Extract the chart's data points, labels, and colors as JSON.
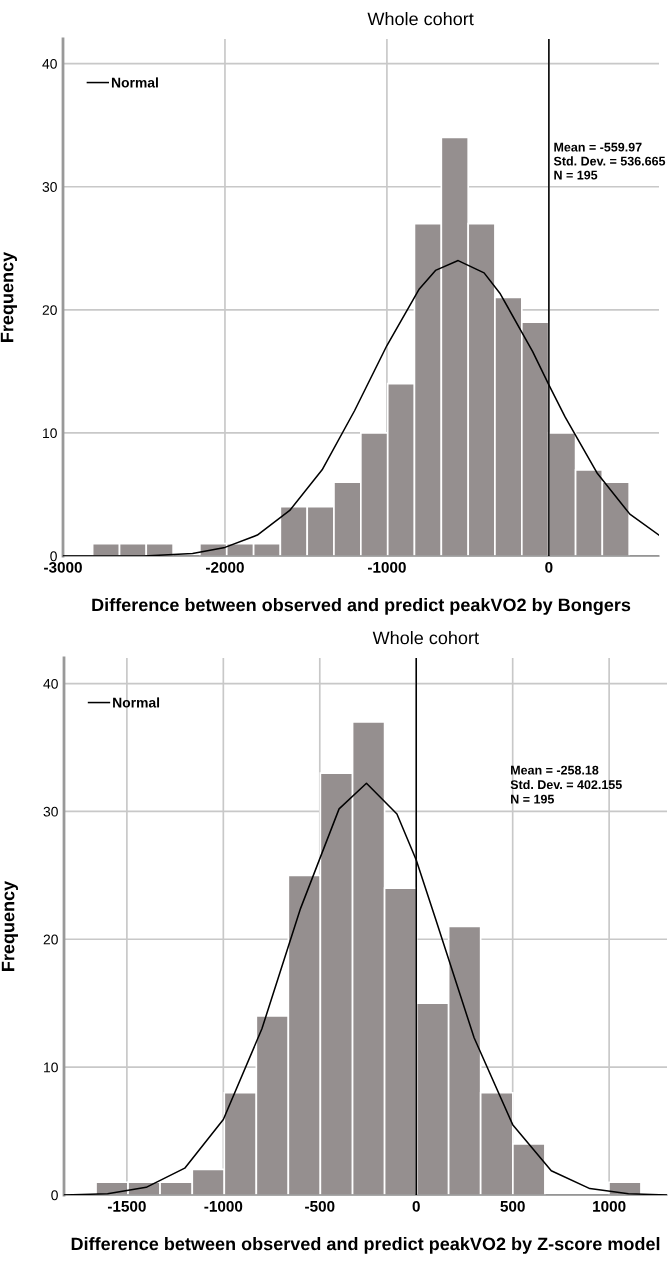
{
  "chart_data": [
    {
      "type": "histogram",
      "title": "Whole cohort",
      "xlabel": "Difference between observed and predict peakVO2 by Bongers",
      "ylabel": "Frequency",
      "bins": [
        -2817,
        -2651,
        -2486,
        -2320,
        -2155,
        -1989,
        -1823,
        -1658,
        -1492,
        -1327,
        -1161,
        -995,
        -830,
        -664,
        -498,
        -333,
        -167,
        -1,
        165,
        330,
        496
      ],
      "values": [
        1,
        1,
        1,
        0,
        1,
        1,
        1,
        4,
        4,
        6,
        10,
        14,
        27,
        34,
        27,
        21,
        19,
        10,
        7,
        6
      ],
      "color": "#958f8f",
      "series": [
        {
          "name": "Normal",
          "type": "line",
          "color": "#000000",
          "x": [
            -3000,
            -2500,
            -2200,
            -2000,
            -1800,
            -1600,
            -1400,
            -1200,
            -1000,
            -800,
            -700,
            -560,
            -400,
            -300,
            -100,
            0,
            100,
            300,
            500,
            680
          ],
          "values": [
            0,
            0,
            0.2,
            0.7,
            1.7,
            3.7,
            7,
            11.8,
            17.1,
            21.7,
            23.2,
            24,
            23,
            21.3,
            16.6,
            13.9,
            11.3,
            6.7,
            3.4,
            1.7
          ]
        }
      ],
      "ref_lines": [
        {
          "axis": "x",
          "value": 0,
          "color": "#000000"
        }
      ],
      "annotations": [
        "Mean = -559.97",
        "Std. Dev. = 536.665",
        "N = 195"
      ],
      "xlim": [
        -3000,
        680
      ],
      "xticks": [
        -3000,
        -2000,
        -1000,
        0
      ],
      "ylim": [
        0,
        42
      ],
      "yticks": [
        0,
        10,
        20,
        30,
        40
      ],
      "grid": true,
      "legend": "top left"
    },
    {
      "type": "histogram",
      "title": "Whole cohort",
      "xlabel": "Difference between observed and predict peakVO2 by Z-score model",
      "ylabel": "Frequency",
      "bins": [
        -1660,
        -1494,
        -1328,
        -1161,
        -995,
        -829,
        -663,
        -497,
        -330,
        -164,
        2,
        168,
        334,
        501,
        667,
        833,
        999,
        1165
      ],
      "values": [
        1,
        1,
        1,
        2,
        8,
        14,
        25,
        33,
        37,
        24,
        15,
        21,
        8,
        4,
        0,
        0,
        1
      ],
      "color": "#958f8f",
      "series": [
        {
          "name": "Normal",
          "type": "line",
          "color": "#000000",
          "x": [
            -1826,
            -1600,
            -1400,
            -1200,
            -1000,
            -800,
            -600,
            -400,
            -258,
            -100,
            0,
            100,
            300,
            500,
            700,
            900,
            1100,
            1300
          ],
          "values": [
            0,
            0.1,
            0.6,
            2.1,
            5.9,
            13,
            22.4,
            30.2,
            32.2,
            29.8,
            26.2,
            21.6,
            12.3,
            5.5,
            1.9,
            0.5,
            0.1,
            0
          ]
        }
      ],
      "ref_lines": [
        {
          "axis": "x",
          "value": 0,
          "color": "#000000"
        }
      ],
      "annotations": [
        "Mean = -258.18",
        "Std. Dev. = 402.155",
        "N = 195"
      ],
      "xlim": [
        -1826,
        1300
      ],
      "xticks": [
        -1500,
        -1000,
        -500,
        0,
        500,
        1000
      ],
      "ylim": [
        0,
        42
      ],
      "yticks": [
        0,
        10,
        20,
        30,
        40
      ],
      "grid": true,
      "legend": "top left"
    }
  ]
}
